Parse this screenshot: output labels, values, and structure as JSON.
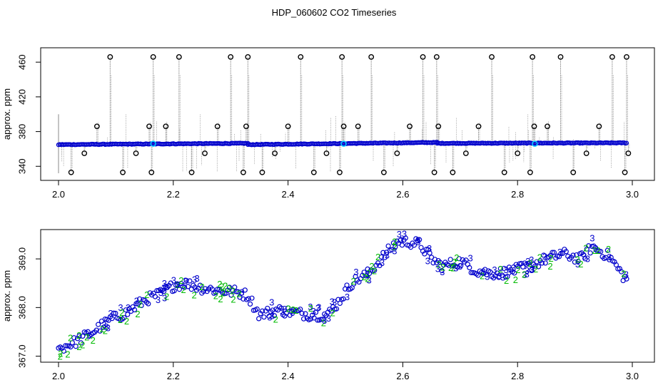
{
  "title": "HDP_060602  CO2 Timeseries",
  "colors": {
    "raw_line": "#8a8a8a",
    "main_points": "#0000cc",
    "outliers": "#000000",
    "highlight": "#00c8ff",
    "series_3": "#0000cc",
    "series_2": "#00bb00",
    "axis": "#000000"
  },
  "chart_data": [
    {
      "type": "scatter",
      "name": "top-panel",
      "title": "HDP_060602  CO2 Timeseries",
      "xlabel": "",
      "ylabel": "approx. ppm",
      "xlim": [
        2.0,
        3.0
      ],
      "ylim": [
        332,
        470
      ],
      "xticks": [
        "2.0",
        "2.2",
        "2.4",
        "2.6",
        "2.8",
        "3.0"
      ],
      "yticks": [
        "340",
        "380",
        "420",
        "460"
      ],
      "baseline_segments": [
        {
          "x": [
            2.0,
            2.33
          ],
          "y": [
            365.0,
            366.5
          ]
        },
        {
          "x": [
            2.33,
            2.66
          ],
          "y": [
            365.0,
            367.5
          ]
        },
        {
          "x": [
            2.66,
            2.99
          ],
          "y": [
            366.5,
            367.0
          ]
        }
      ],
      "gap_points": [
        {
          "x": 2.165,
          "y": 366
        },
        {
          "x": 2.497,
          "y": 366
        },
        {
          "x": 2.83,
          "y": 366
        }
      ],
      "outliers": {
        "x": [
          2.022,
          2.045,
          2.067,
          2.09,
          2.112,
          2.135,
          2.158,
          2.162,
          2.165,
          2.187,
          2.21,
          2.232,
          2.255,
          2.277,
          2.3,
          2.322,
          2.327,
          2.33,
          2.355,
          2.377,
          2.4,
          2.422,
          2.445,
          2.467,
          2.49,
          2.494,
          2.497,
          2.522,
          2.545,
          2.567,
          2.59,
          2.612,
          2.635,
          2.655,
          2.659,
          2.662,
          2.687,
          2.71,
          2.732,
          2.755,
          2.777,
          2.8,
          2.822,
          2.826,
          2.829,
          2.852,
          2.875,
          2.897,
          2.92,
          2.942,
          2.965,
          2.987,
          2.99,
          2.993
        ],
        "y": [
          333,
          355,
          386,
          466,
          333,
          355,
          386,
          333,
          466,
          386,
          466,
          333,
          355,
          386,
          466,
          333,
          386,
          466,
          333,
          355,
          386,
          466,
          333,
          355,
          333,
          466,
          386,
          386,
          466,
          333,
          355,
          386,
          466,
          333,
          466,
          386,
          333,
          355,
          386,
          466,
          333,
          355,
          333,
          466,
          386,
          386,
          466,
          333,
          355,
          386,
          466,
          333,
          466,
          355
        ]
      }
    },
    {
      "type": "scatter",
      "name": "bottom-panel",
      "xlabel": "",
      "ylabel": "approx. ppm",
      "xlim": [
        2.0,
        3.0
      ],
      "ylim": [
        366.95,
        369.5
      ],
      "xticks": [
        "2.0",
        "2.2",
        "2.4",
        "2.6",
        "2.8",
        "3.0"
      ],
      "yticks": [
        "367.0",
        "368.0",
        "369.0"
      ],
      "trend": {
        "x": [
          2.0,
          2.03,
          2.06,
          2.09,
          2.12,
          2.15,
          2.18,
          2.2,
          2.22,
          2.25,
          2.28,
          2.31,
          2.33,
          2.35,
          2.38,
          2.41,
          2.44,
          2.47,
          2.49,
          2.51,
          2.54,
          2.57,
          2.59,
          2.61,
          2.63,
          2.65,
          2.67,
          2.7,
          2.73,
          2.76,
          2.79,
          2.82,
          2.85,
          2.88,
          2.91,
          2.93,
          2.96,
          2.99
        ],
        "y": [
          367.15,
          367.3,
          367.5,
          367.75,
          367.9,
          368.15,
          368.3,
          368.45,
          368.5,
          368.4,
          368.35,
          368.32,
          368.25,
          367.85,
          367.95,
          367.9,
          367.85,
          367.85,
          368.15,
          368.5,
          368.7,
          369.1,
          369.35,
          369.35,
          369.3,
          369.0,
          368.85,
          368.95,
          368.75,
          368.7,
          368.75,
          368.85,
          369.0,
          369.1,
          369.0,
          369.25,
          369.05,
          368.55
        ]
      },
      "series": [
        {
          "name": "3",
          "marker": "3"
        },
        {
          "name": "2",
          "marker": "2"
        }
      ]
    }
  ]
}
